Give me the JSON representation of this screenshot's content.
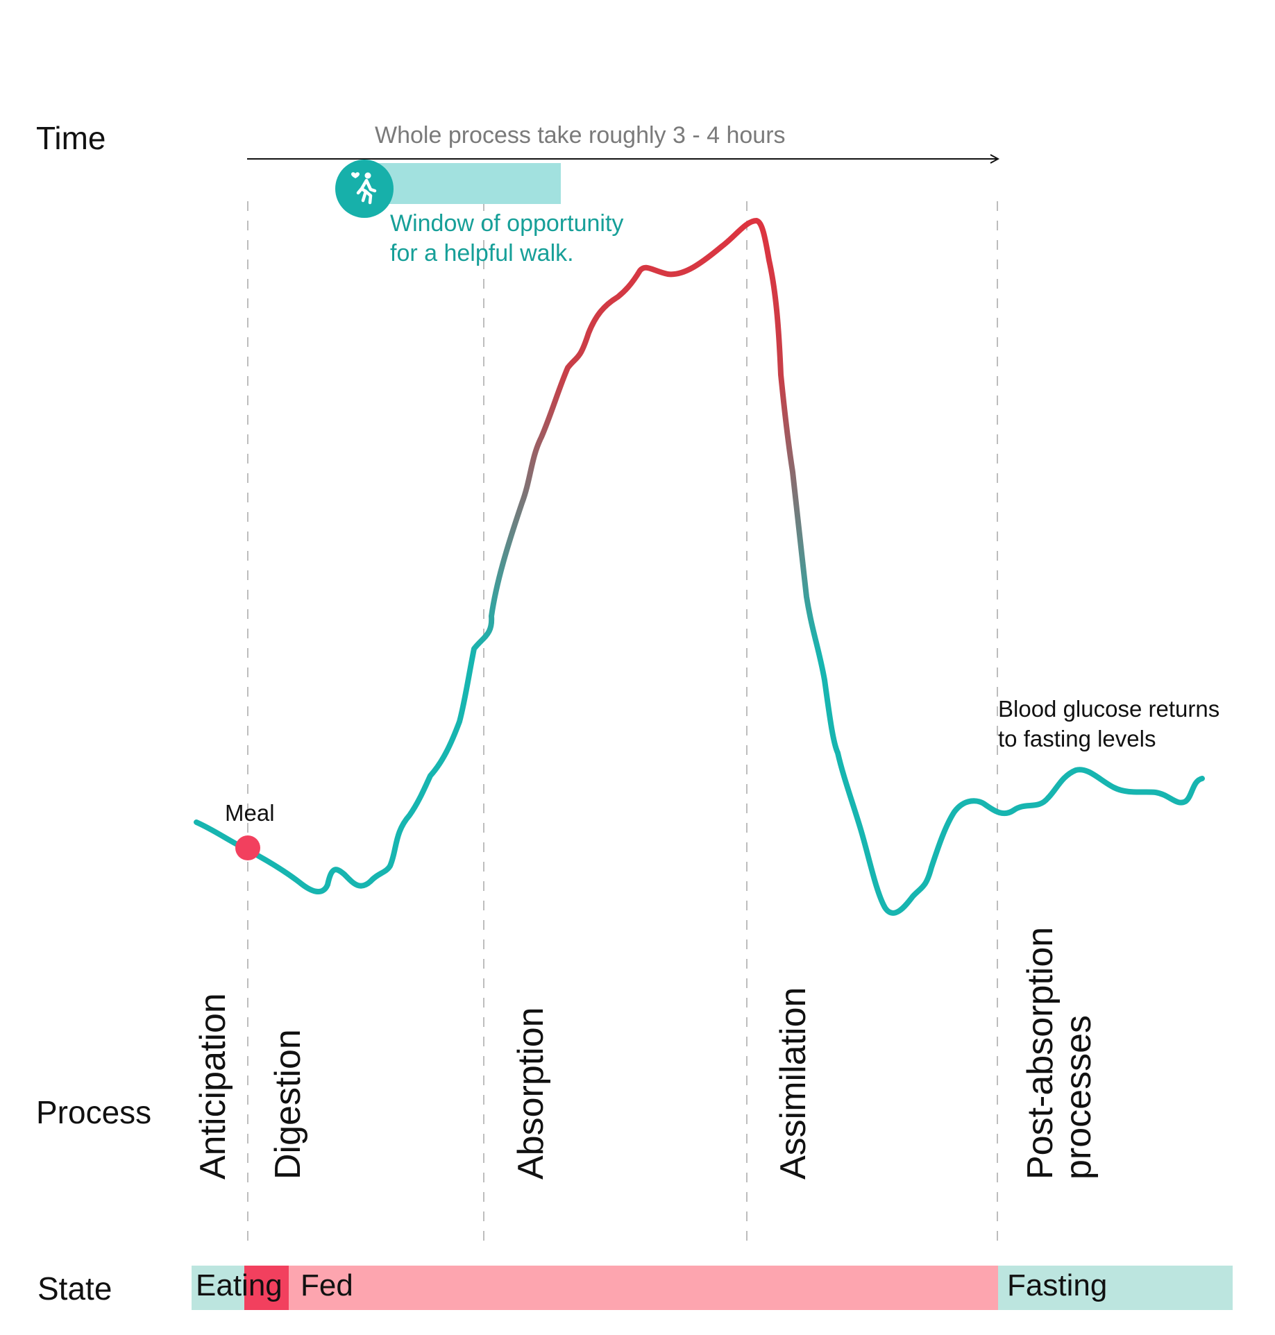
{
  "row_labels": {
    "time": "Time",
    "process": "Process",
    "state": "State"
  },
  "time_note": "Whole process take roughly 3 - 4 hours",
  "walk_window": {
    "line1": "Window of opportunity",
    "line2": "for a helpful walk.",
    "icon": "walking-person-heart-icon"
  },
  "meal_label": "Meal",
  "fasting_note": {
    "line1": "Blood glucose returns",
    "line2": "to fasting levels"
  },
  "phases": [
    {
      "label_line1": "Anticipation"
    },
    {
      "label_line1": "Digestion"
    },
    {
      "label_line1": "Absorption"
    },
    {
      "label_line1": "Assimilation"
    },
    {
      "label_line1": "Post-absorption",
      "label_line2": "processes"
    }
  ],
  "states": [
    {
      "label": "Eating",
      "color": "#bce5df"
    },
    {
      "label": "",
      "color": "#f2405e"
    },
    {
      "label": "Fed",
      "color": "#fda5af"
    },
    {
      "label": "Fasting",
      "color": "#bce5df"
    }
  ],
  "colors": {
    "curve_low": "#17b5b0",
    "curve_high": "#dd3440",
    "meal_dot": "#f2405e",
    "walk_accent": "#17b0aa",
    "walk_bar": "#a2e1df"
  }
}
